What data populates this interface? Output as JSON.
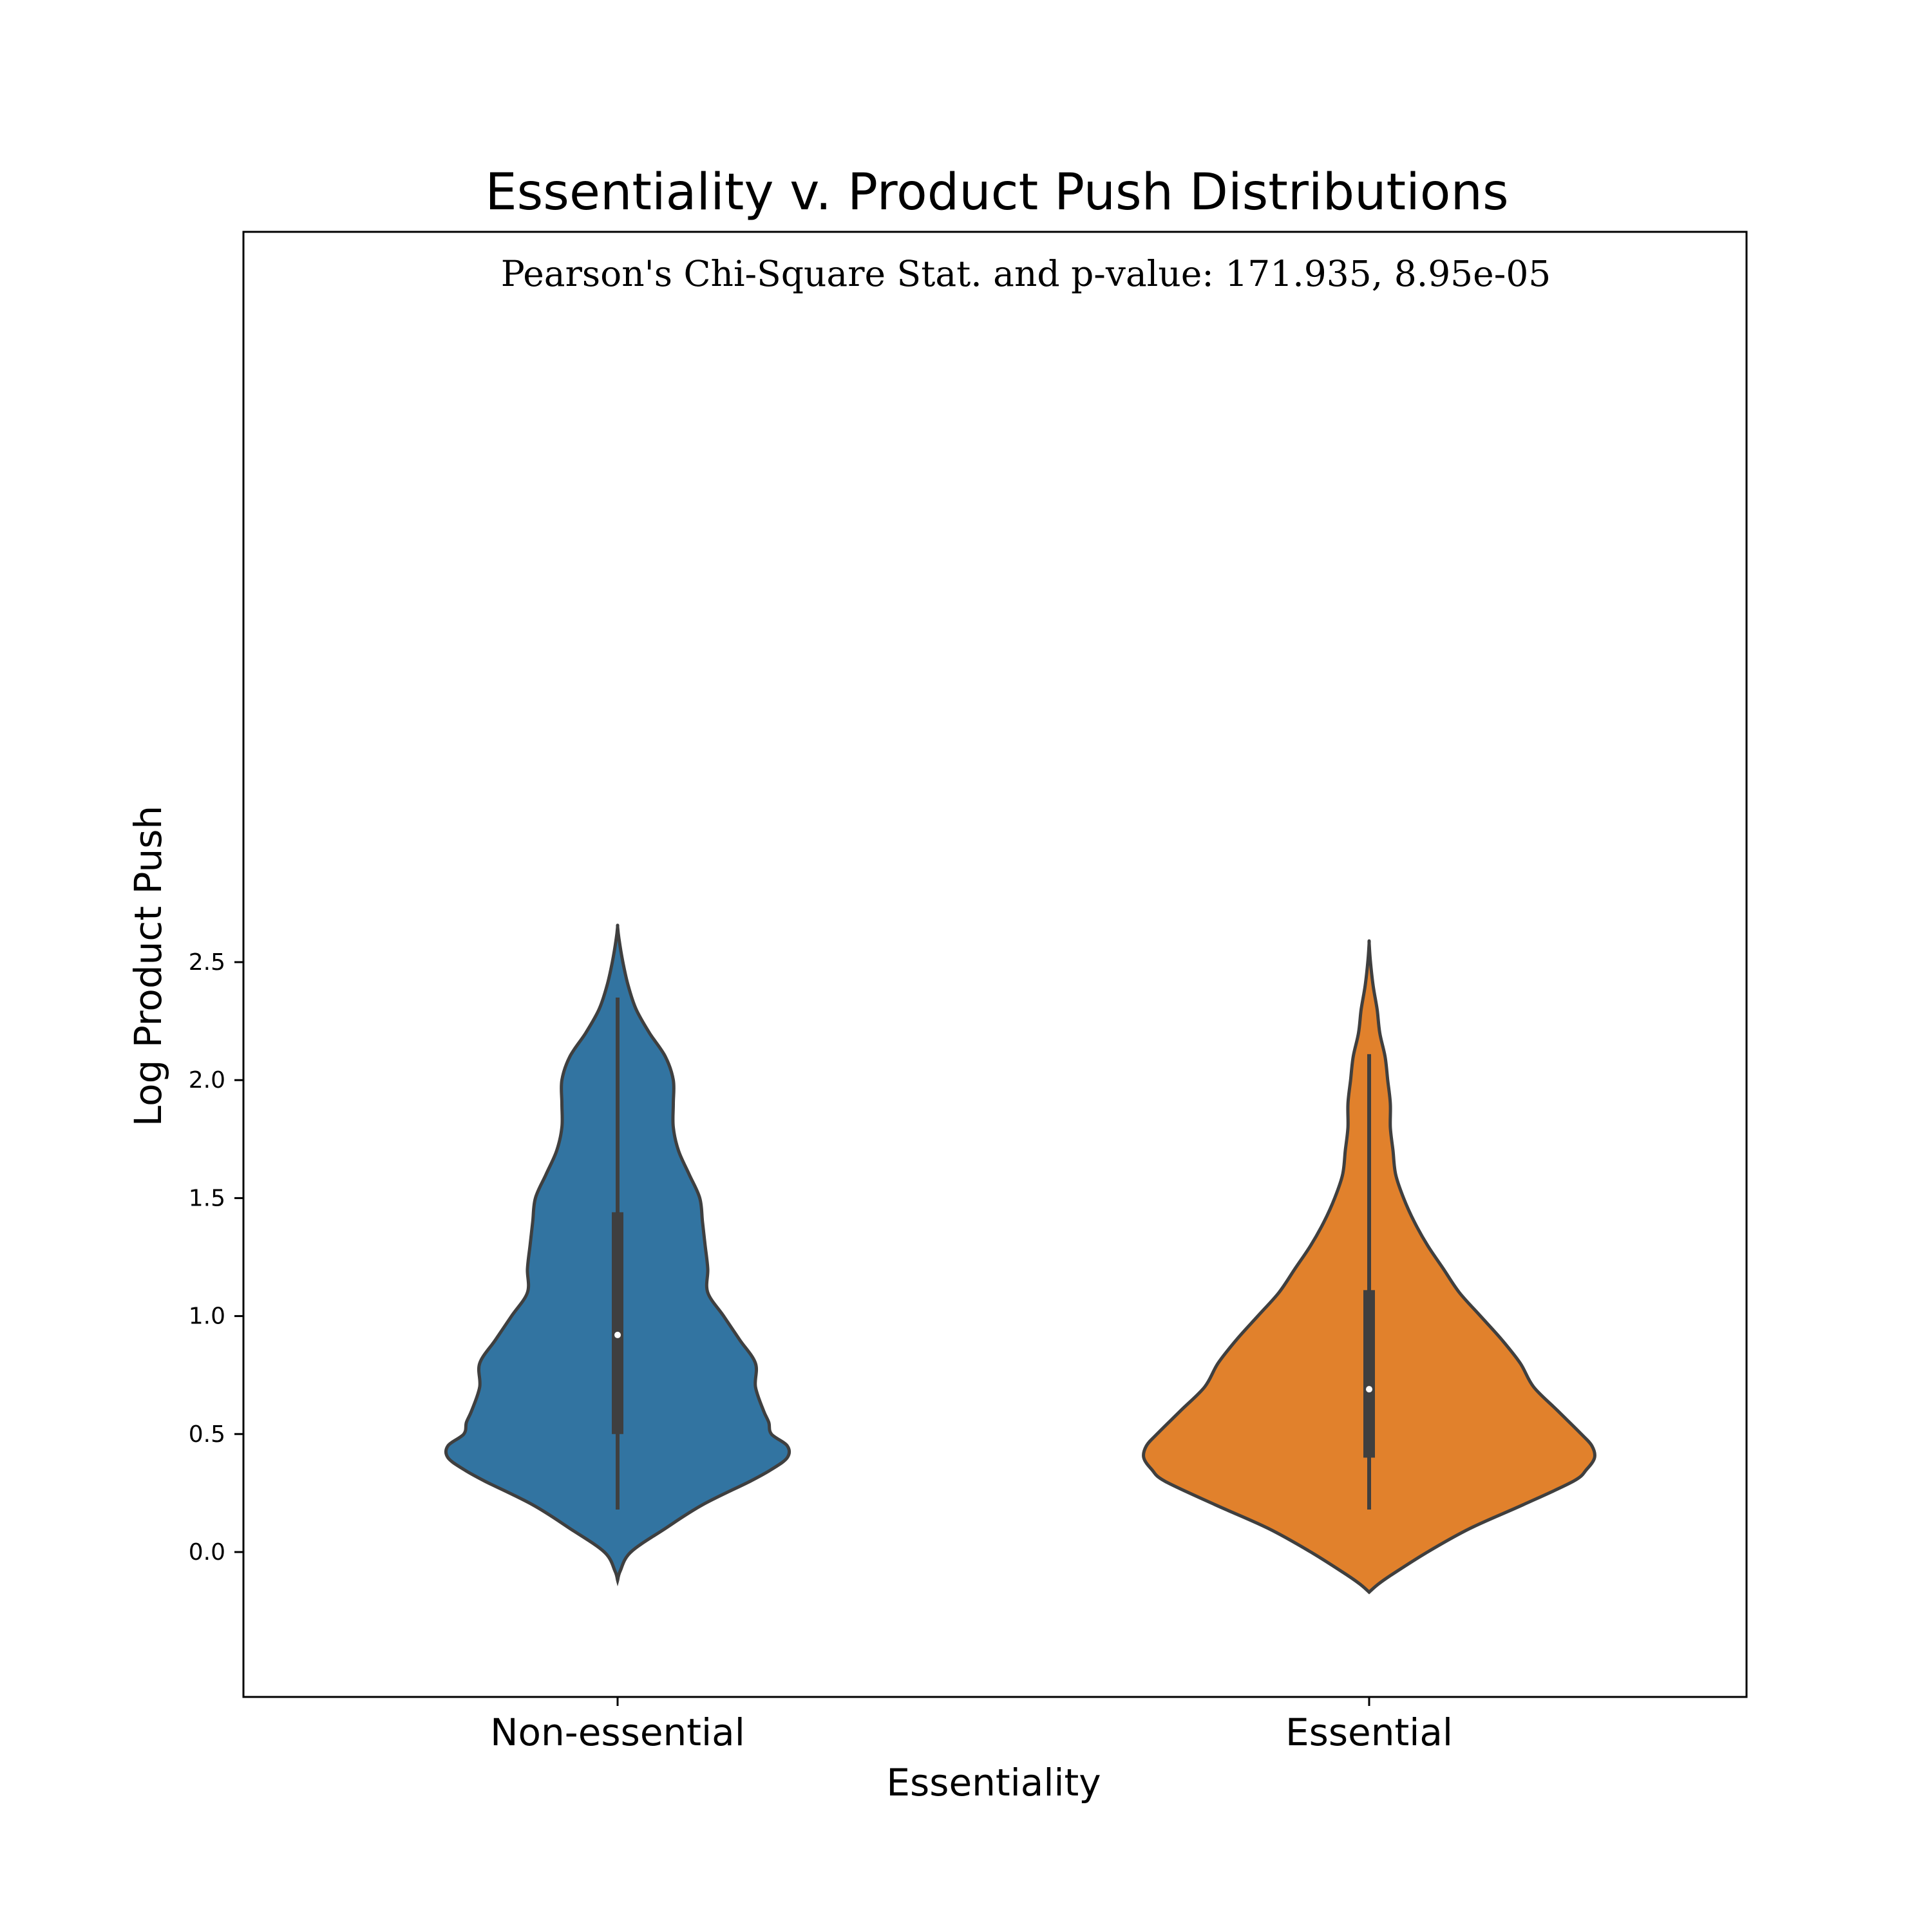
{
  "chart_data": {
    "type": "violin",
    "title": "Essentiality v. Product Push Distributions",
    "annotation": "Pearson's Chi-Square Stat. and p-value: 171.935, 8.95e-05",
    "xlabel": "Essentiality",
    "ylabel": "Log Product Push",
    "ylim": [
      -0.3,
      2.8
    ],
    "yticks": [
      0.0,
      0.5,
      1.0,
      1.5,
      2.0,
      2.5
    ],
    "ytick_labels": [
      "0.0",
      "0.5",
      "1.0",
      "1.5",
      "2.0",
      "2.5"
    ],
    "categories": [
      "Non-essential",
      "Essential"
    ],
    "grid": false,
    "series": [
      {
        "category": "Non-essential",
        "color": "#3274a1",
        "median": 0.92,
        "q1": 0.5,
        "q3": 1.44,
        "whisker_low": 0.18,
        "whisker_high": 2.35,
        "density": [
          [
            -0.12,
            0.0
          ],
          [
            -0.08,
            0.01
          ],
          [
            0.0,
            0.05
          ],
          [
            0.1,
            0.18
          ],
          [
            0.2,
            0.32
          ],
          [
            0.3,
            0.5
          ],
          [
            0.35,
            0.58
          ],
          [
            0.4,
            0.64
          ],
          [
            0.45,
            0.64
          ],
          [
            0.5,
            0.58
          ],
          [
            0.55,
            0.57
          ],
          [
            0.6,
            0.55
          ],
          [
            0.7,
            0.52
          ],
          [
            0.8,
            0.52
          ],
          [
            0.9,
            0.46
          ],
          [
            1.0,
            0.4
          ],
          [
            1.1,
            0.34
          ],
          [
            1.2,
            0.34
          ],
          [
            1.3,
            0.33
          ],
          [
            1.4,
            0.32
          ],
          [
            1.5,
            0.31
          ],
          [
            1.6,
            0.27
          ],
          [
            1.7,
            0.23
          ],
          [
            1.8,
            0.21
          ],
          [
            1.9,
            0.21
          ],
          [
            2.0,
            0.21
          ],
          [
            2.1,
            0.18
          ],
          [
            2.2,
            0.12
          ],
          [
            2.3,
            0.07
          ],
          [
            2.4,
            0.04
          ],
          [
            2.5,
            0.02
          ],
          [
            2.6,
            0.005
          ],
          [
            2.65,
            0.0
          ]
        ]
      },
      {
        "category": "Essential",
        "color": "#e1812c",
        "median": 0.69,
        "q1": 0.4,
        "q3": 1.11,
        "whisker_low": 0.18,
        "whisker_high": 2.11,
        "density": [
          [
            -0.17,
            0.0
          ],
          [
            -0.14,
            0.03
          ],
          [
            -0.1,
            0.08
          ],
          [
            0.0,
            0.22
          ],
          [
            0.1,
            0.38
          ],
          [
            0.2,
            0.58
          ],
          [
            0.3,
            0.77
          ],
          [
            0.35,
            0.82
          ],
          [
            0.4,
            0.85
          ],
          [
            0.45,
            0.84
          ],
          [
            0.5,
            0.8
          ],
          [
            0.6,
            0.71
          ],
          [
            0.7,
            0.62
          ],
          [
            0.8,
            0.57
          ],
          [
            0.9,
            0.5
          ],
          [
            1.0,
            0.42
          ],
          [
            1.1,
            0.34
          ],
          [
            1.2,
            0.28
          ],
          [
            1.3,
            0.22
          ],
          [
            1.4,
            0.17
          ],
          [
            1.5,
            0.13
          ],
          [
            1.6,
            0.1
          ],
          [
            1.7,
            0.09
          ],
          [
            1.8,
            0.08
          ],
          [
            1.9,
            0.08
          ],
          [
            2.0,
            0.07
          ],
          [
            2.1,
            0.06
          ],
          [
            2.2,
            0.04
          ],
          [
            2.3,
            0.03
          ],
          [
            2.4,
            0.015
          ],
          [
            2.5,
            0.005
          ],
          [
            2.58,
            0.0
          ]
        ]
      }
    ]
  }
}
